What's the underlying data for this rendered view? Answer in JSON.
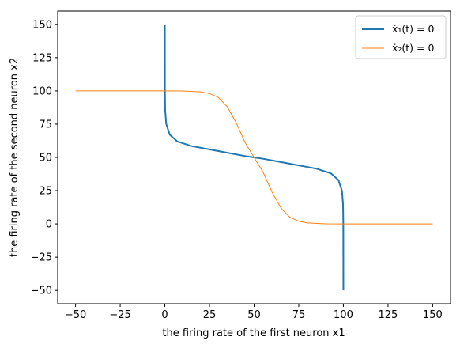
{
  "chart_data": {
    "type": "line",
    "xlabel": "the firing rate of the first neuron x1",
    "ylabel": "the firing rate of the second neuron x2",
    "xlim": [
      -60,
      160
    ],
    "ylim": [
      -60,
      160
    ],
    "x_ticks": [
      -50,
      -25,
      0,
      25,
      50,
      75,
      100,
      125,
      150
    ],
    "y_ticks": [
      -50,
      -25,
      0,
      25,
      50,
      75,
      100,
      125,
      150
    ],
    "x_tick_labels": [
      "−50",
      "−25",
      "0",
      "25",
      "50",
      "75",
      "100",
      "125",
      "150"
    ],
    "y_tick_labels": [
      "−50",
      "−25",
      "0",
      "25",
      "50",
      "75",
      "100",
      "125",
      "150"
    ],
    "grid": false,
    "legend_position": "top-right",
    "series": [
      {
        "name": "ẋ₁(t) = 0",
        "color": "#1f77b4",
        "points": [
          [
            0,
            150
          ],
          [
            0.04,
            100
          ],
          [
            0.2,
            85
          ],
          [
            0.8,
            75
          ],
          [
            2.8,
            67
          ],
          [
            7,
            62
          ],
          [
            15,
            58.5
          ],
          [
            25,
            56
          ],
          [
            35,
            53.5
          ],
          [
            45,
            51
          ],
          [
            50,
            50
          ],
          [
            55,
            49
          ],
          [
            65,
            46.5
          ],
          [
            75,
            44
          ],
          [
            85,
            41.5
          ],
          [
            93,
            38
          ],
          [
            97.2,
            33
          ],
          [
            99.2,
            25
          ],
          [
            99.8,
            15
          ],
          [
            99.96,
            0
          ],
          [
            100,
            -50
          ]
        ]
      },
      {
        "name": "ẋ₂(t) = 0",
        "color": "#ff7f0e",
        "points": [
          [
            -50,
            100
          ],
          [
            0,
            100
          ],
          [
            10,
            99.95
          ],
          [
            20,
            99.3
          ],
          [
            25,
            98
          ],
          [
            30,
            95
          ],
          [
            35,
            88
          ],
          [
            40,
            76
          ],
          [
            45,
            61
          ],
          [
            50,
            50
          ],
          [
            55,
            39
          ],
          [
            60,
            24
          ],
          [
            65,
            12
          ],
          [
            70,
            5
          ],
          [
            75,
            2
          ],
          [
            80,
            0.7
          ],
          [
            90,
            0.05
          ],
          [
            100,
            0
          ],
          [
            150,
            0
          ]
        ]
      }
    ]
  }
}
